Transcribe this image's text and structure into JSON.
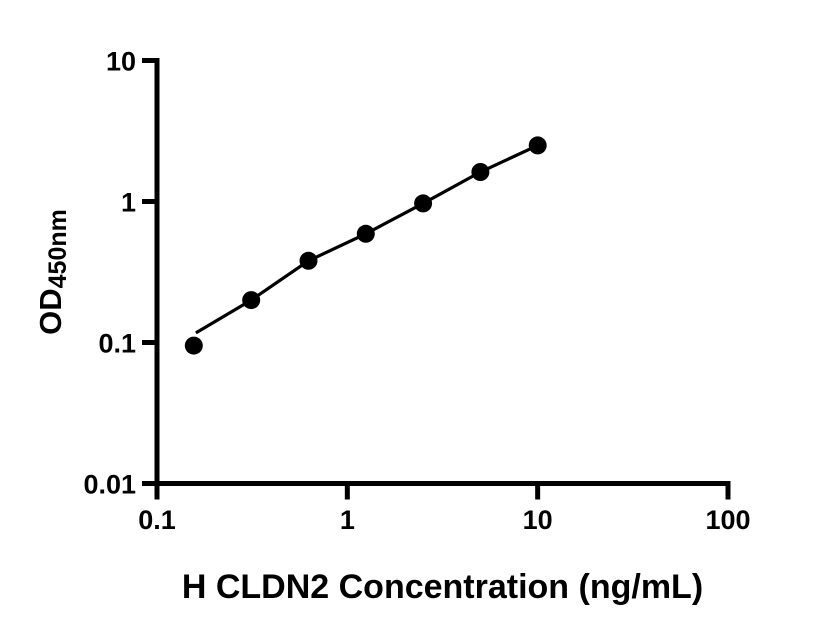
{
  "figure": {
    "background_color": "#ffffff",
    "foreground_color": "#000000"
  },
  "chart_data": {
    "type": "scatter",
    "subtype": "line-with-markers",
    "title": "",
    "xlabel": "H CLDN2 Concentration (ng/mL)",
    "ylabel": "OD",
    "ylabel_subscript": "450nm",
    "x_scale": "log10",
    "y_scale": "log10",
    "xlim": [
      0.1,
      100
    ],
    "ylim": [
      0.01,
      10
    ],
    "x_ticks": [
      0.1,
      1,
      10,
      100
    ],
    "x_tick_labels": [
      "0.1",
      "1",
      "10",
      "100"
    ],
    "y_ticks": [
      0.01,
      0.1,
      1,
      10
    ],
    "y_tick_labels": [
      "0.01",
      "0.1",
      "1",
      "10"
    ],
    "grid": false,
    "legend_position": "none",
    "marker": {
      "shape": "circle",
      "color": "#000000",
      "radius_px": 9
    },
    "line_color": "#000000",
    "series": [
      {
        "name": "standard-curve-points",
        "x": [
          0.156,
          0.3125,
          0.625,
          1.25,
          2.5,
          5,
          10
        ],
        "y": [
          0.095,
          0.2,
          0.38,
          0.59,
          0.97,
          1.62,
          2.5
        ]
      }
    ],
    "fit_line": {
      "name": "standard-curve-fit-line",
      "x": [
        0.16,
        0.3125,
        0.625,
        1.25,
        2.5,
        5,
        10
      ],
      "y": [
        0.117,
        0.2,
        0.38,
        0.59,
        0.97,
        1.62,
        2.5
      ]
    }
  }
}
